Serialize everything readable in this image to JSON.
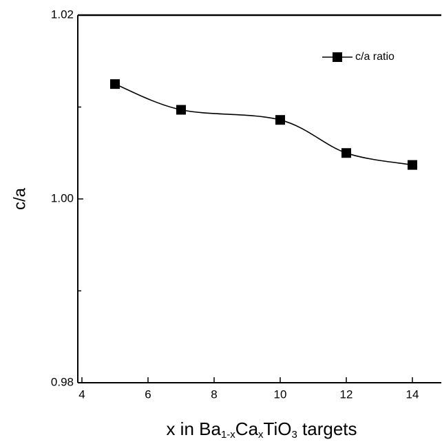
{
  "chart_data": {
    "type": "line",
    "xlabel": [
      "x in Ba",
      "1-x",
      "Ca",
      "x",
      "TiO",
      "3",
      " targets"
    ],
    "ylabel": "c/a",
    "series": [
      {
        "name": "c/a ratio",
        "color": "#000000",
        "marker": "square",
        "smooth": true,
        "x": [
          5,
          7,
          10,
          12,
          14
        ],
        "values": [
          1.0125,
          1.0097,
          1.0086,
          1.005,
          1.0037
        ]
      }
    ],
    "xlim": [
      4,
      14.9
    ],
    "xticks": [
      4,
      6,
      8,
      10,
      12,
      14
    ],
    "ylim": [
      0.98,
      1.02
    ],
    "yticks": [
      0.98,
      {
        "value": 1,
        "label": "1.00"
      },
      1.02
    ],
    "yminor_ticks": [
      0.99,
      1.01
    ],
    "legend": "top-right"
  }
}
